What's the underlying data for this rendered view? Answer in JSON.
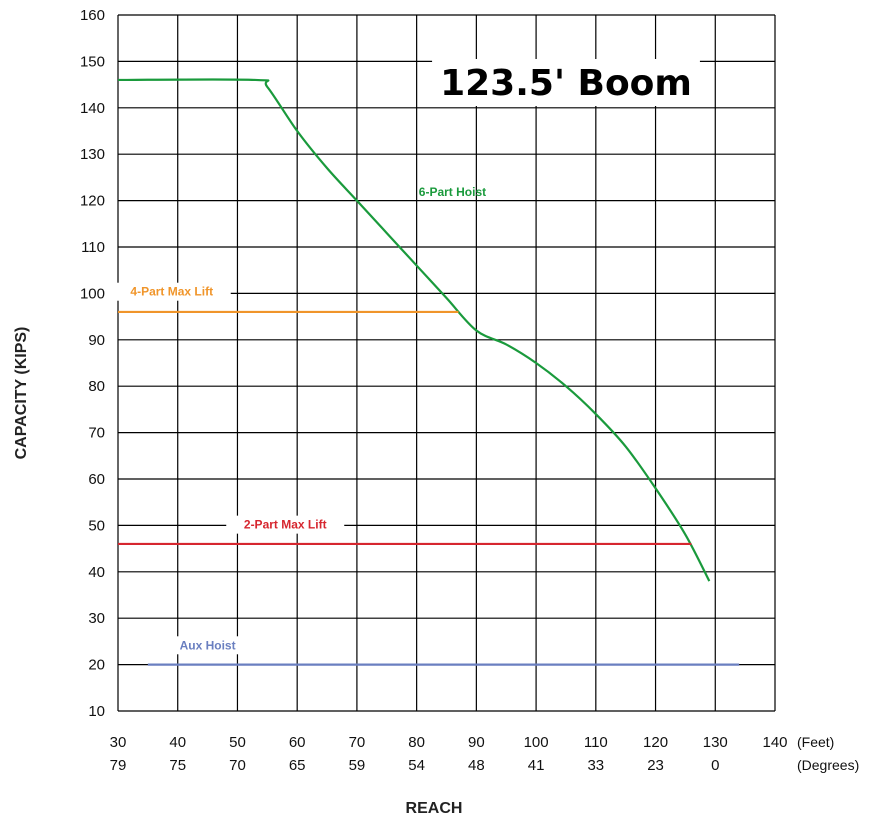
{
  "chart_data": {
    "type": "line",
    "title": "123.5' Boom",
    "xlabel": "REACH",
    "ylabel": "CAPACITY (KIPS)",
    "x_unit": "(Feet)",
    "secondary_x_unit": "(Degrees)",
    "xlim": [
      30,
      140
    ],
    "ylim": [
      10,
      160
    ],
    "x_ticks": [
      30,
      40,
      50,
      60,
      70,
      80,
      90,
      100,
      110,
      120,
      130,
      140
    ],
    "degree_ticks": [
      {
        "x": 30,
        "label": "79"
      },
      {
        "x": 40,
        "label": "75"
      },
      {
        "x": 50,
        "label": "70"
      },
      {
        "x": 60,
        "label": "65"
      },
      {
        "x": 70,
        "label": "59"
      },
      {
        "x": 80,
        "label": "54"
      },
      {
        "x": 90,
        "label": "48"
      },
      {
        "x": 100,
        "label": "41"
      },
      {
        "x": 110,
        "label": "33"
      },
      {
        "x": 120,
        "label": "23"
      },
      {
        "x": 130,
        "label": "0"
      }
    ],
    "y_ticks": [
      10,
      20,
      30,
      40,
      50,
      60,
      70,
      80,
      90,
      100,
      110,
      120,
      130,
      140,
      150,
      160
    ],
    "grid": true,
    "series": [
      {
        "name": "6-Part Hoist",
        "color": "#1a9a3c",
        "points": [
          [
            30,
            146
          ],
          [
            53,
            146
          ],
          [
            55,
            144.5
          ],
          [
            60,
            135
          ],
          [
            65,
            127
          ],
          [
            70,
            120
          ],
          [
            75,
            113
          ],
          [
            80,
            106
          ],
          [
            85,
            99
          ],
          [
            90,
            92
          ],
          [
            95,
            89
          ],
          [
            100,
            85
          ],
          [
            105,
            80
          ],
          [
            110,
            74
          ],
          [
            115,
            67
          ],
          [
            120,
            58
          ],
          [
            125,
            48
          ],
          [
            129,
            38
          ]
        ]
      },
      {
        "name": "4-Part Max Lift",
        "color": "#f0952a",
        "points": [
          [
            30,
            96
          ],
          [
            87,
            96
          ]
        ]
      },
      {
        "name": "2-Part Max Lift",
        "color": "#d6262f",
        "points": [
          [
            30,
            46
          ],
          [
            126,
            46
          ]
        ]
      },
      {
        "name": "Aux Hoist",
        "color": "#6a7fc0",
        "points": [
          [
            35,
            20
          ],
          [
            134,
            20
          ]
        ]
      }
    ]
  }
}
